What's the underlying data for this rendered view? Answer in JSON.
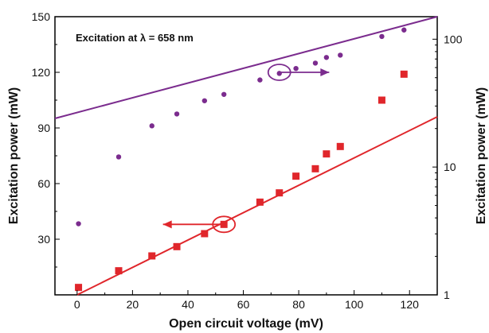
{
  "chart_data": {
    "type": "scatter",
    "annotation": "Excitation at λ = 658 nm",
    "xlabel": "Open circuit voltage (mV)",
    "ylabel_left": "Excitation power (mW)",
    "ylabel_right": "Excitation power (mW)",
    "xlim": [
      -8,
      130
    ],
    "ylim_left": [
      0,
      150
    ],
    "ylim_right_log": [
      1,
      150
    ],
    "x_ticks": [
      0,
      20,
      40,
      60,
      80,
      100,
      120
    ],
    "y_ticks_left": [
      30,
      60,
      90,
      120,
      150
    ],
    "y_ticks_right": [
      1,
      10,
      100
    ],
    "grid": false,
    "series": [
      {
        "axis": "right-log",
        "marker": "circle",
        "color": "#7b2c8e",
        "points": [
          {
            "x": 0.5,
            "y": 3.6
          },
          {
            "x": 15,
            "y": 12
          },
          {
            "x": 27,
            "y": 21
          },
          {
            "x": 36,
            "y": 26
          },
          {
            "x": 46,
            "y": 33
          },
          {
            "x": 53,
            "y": 37
          },
          {
            "x": 66,
            "y": 48
          },
          {
            "x": 73,
            "y": 54
          },
          {
            "x": 79,
            "y": 59
          },
          {
            "x": 86,
            "y": 65
          },
          {
            "x": 90,
            "y": 72
          },
          {
            "x": 95,
            "y": 75
          },
          {
            "x": 110,
            "y": 105
          },
          {
            "x": 118,
            "y": 118
          }
        ],
        "fit": {
          "x0": -8,
          "y0": 24,
          "x1": 130,
          "y1": 150
        }
      },
      {
        "axis": "left-linear",
        "marker": "square",
        "color": "#e0262b",
        "points": [
          {
            "x": 0.5,
            "y": 4
          },
          {
            "x": 15,
            "y": 13
          },
          {
            "x": 27,
            "y": 21
          },
          {
            "x": 36,
            "y": 26
          },
          {
            "x": 46,
            "y": 33
          },
          {
            "x": 53,
            "y": 38
          },
          {
            "x": 66,
            "y": 50
          },
          {
            "x": 73,
            "y": 55
          },
          {
            "x": 79,
            "y": 64
          },
          {
            "x": 86,
            "y": 68
          },
          {
            "x": 90,
            "y": 76
          },
          {
            "x": 95,
            "y": 80
          },
          {
            "x": 110,
            "y": 105
          },
          {
            "x": 118,
            "y": 119
          }
        ],
        "fit": {
          "x0": 0,
          "y0": 0,
          "x1": 130,
          "y1": 96
        }
      }
    ],
    "arrows": [
      {
        "color": "#7b2c8e",
        "direction": "right",
        "ring": {
          "x": 73,
          "y": 120
        },
        "from_x": 73,
        "to_x": 91,
        "y": 120
      },
      {
        "color": "#e0262b",
        "direction": "left",
        "ring": {
          "x": 53,
          "y": 38
        },
        "from_x": 53,
        "to_x": 31,
        "y": 38
      }
    ]
  }
}
